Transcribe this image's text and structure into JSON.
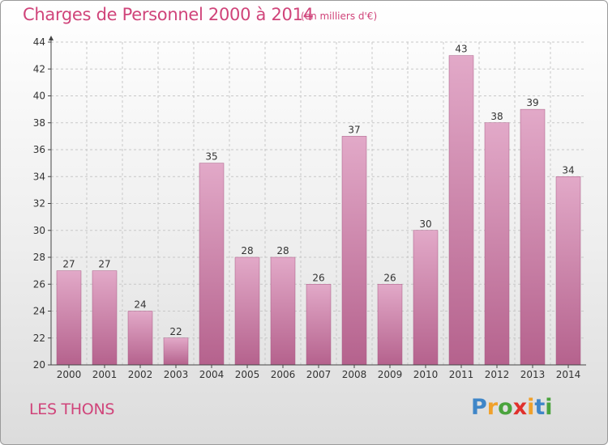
{
  "chart_data": {
    "type": "bar",
    "title": "Charges de Personnel 2000 à 2014",
    "subtitle": "(en milliers d'€)",
    "categories": [
      "2000",
      "2001",
      "2002",
      "2003",
      "2004",
      "2005",
      "2006",
      "2007",
      "2008",
      "2009",
      "2010",
      "2011",
      "2012",
      "2013",
      "2014"
    ],
    "values": [
      27,
      27,
      24,
      22,
      35,
      28,
      28,
      26,
      37,
      26,
      30,
      43,
      38,
      39,
      34
    ],
    "ylim": [
      20,
      44
    ],
    "yticks": [
      20,
      22,
      24,
      26,
      28,
      30,
      32,
      34,
      36,
      38,
      40,
      42,
      44
    ],
    "grid": true,
    "bar_color": "#c96f9c",
    "bar_color_light": "#e2a9c8",
    "bar_color_dark": "#b5628d"
  },
  "location": "LES THONS",
  "logo": {
    "letters": [
      "P",
      "r",
      "o",
      "x",
      "i",
      "t",
      "i"
    ],
    "colors": [
      "#3f86c8",
      "#f0a12b",
      "#4aa33d",
      "#e0302c",
      "#f0a12b",
      "#3f86c8",
      "#4aa33d"
    ]
  },
  "colors": {
    "accent": "#d0447a",
    "axis": "#444444",
    "grid": "#c8c8c8"
  }
}
